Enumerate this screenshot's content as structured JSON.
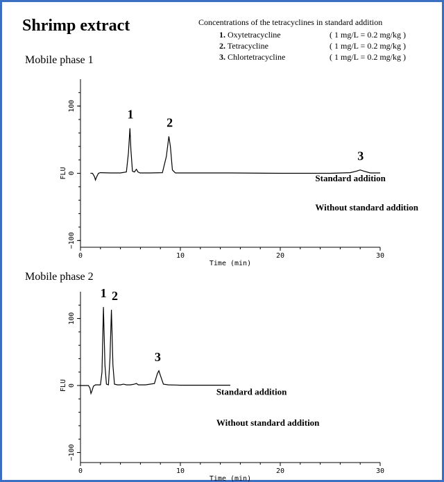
{
  "title": "Shrimp extract",
  "legend": {
    "heading": "Concentrations of the tetracyclines in standard addition",
    "items": [
      {
        "num": "1.",
        "name": "Oxytetracycline",
        "conc": "( 1 mg/L = 0.2 mg/kg )"
      },
      {
        "num": "2.",
        "name": "Tetracycline",
        "conc": "( 1 mg/L = 0.2 mg/kg )"
      },
      {
        "num": "3.",
        "name": "Chlortetracycline",
        "conc": "( 1 mg/L = 0.2 mg/kg )"
      }
    ]
  },
  "colors": {
    "frame": "#3a6fc4",
    "trace": "#000000"
  },
  "chart_data": [
    {
      "type": "line",
      "panel_label": "Mobile phase 1",
      "xlabel": "Time (min)",
      "ylabel": "FLU",
      "xlim": [
        0,
        30
      ],
      "ylim": [
        -110,
        140
      ],
      "xticks": [
        "0",
        "10",
        "20",
        "30"
      ],
      "yticks": [
        "100",
        "0",
        "−100"
      ],
      "ytick_values": [
        100,
        0,
        -100
      ],
      "grid": false,
      "series": [
        {
          "name": "Standard addition",
          "x": [
            1.0,
            1.2,
            1.4,
            1.5,
            1.6,
            1.8,
            2.0,
            3.0,
            4.0,
            4.6,
            4.8,
            4.95,
            5.05,
            5.2,
            5.4,
            5.6,
            5.75,
            5.95,
            6.3,
            7.0,
            8.2,
            8.6,
            8.85,
            9.0,
            9.2,
            9.5,
            10.0,
            15.0,
            20.0,
            25.0,
            27.0,
            27.6,
            28.0,
            28.4,
            29.0,
            30.0
          ],
          "y": [
            0,
            0,
            -5,
            -10,
            -6,
            0,
            1,
            0.5,
            0.5,
            2,
            30,
            67,
            35,
            3,
            2,
            6,
            2,
            0.5,
            0.5,
            0.5,
            1,
            25,
            55,
            40,
            5,
            0.5,
            0.5,
            0.5,
            0,
            0,
            1,
            3,
            5,
            3,
            0.5,
            0.5
          ]
        }
      ],
      "annotations": [
        {
          "text": "1",
          "x": 4.9,
          "y": 67
        },
        {
          "text": "2",
          "x": 8.9,
          "y": 55
        },
        {
          "text": "3",
          "x": 28.0,
          "y": 5
        },
        {
          "text": "Standard addition",
          "x": 23.5,
          "y": -12
        },
        {
          "text": "Without standard addition",
          "x": 23.5,
          "y": -55
        }
      ]
    },
    {
      "type": "line",
      "panel_label": "Mobile phase 2",
      "xlabel": "Time (min)",
      "ylabel": "FLU",
      "xlim": [
        0,
        30
      ],
      "ylim": [
        -115,
        140
      ],
      "xticks": [
        "0",
        "10",
        "20",
        "30"
      ],
      "yticks": [
        "100",
        "0",
        "−100"
      ],
      "ytick_values": [
        100,
        0,
        -100
      ],
      "grid": false,
      "series": [
        {
          "name": "Standard addition",
          "x": [
            0.0,
            0.8,
            0.95,
            1.05,
            1.15,
            1.3,
            1.5,
            2.0,
            2.15,
            2.3,
            2.45,
            2.6,
            2.8,
            2.95,
            3.1,
            3.25,
            3.4,
            3.7,
            4.0,
            4.3,
            4.6,
            5.0,
            5.4,
            5.6,
            5.8,
            6.5,
            7.4,
            7.7,
            7.85,
            8.0,
            8.3,
            8.8,
            10.0,
            12.0,
            15.0
          ],
          "y": [
            0,
            0,
            -4,
            -12,
            -8,
            -1,
            1,
            1,
            20,
            117,
            30,
            2,
            1,
            40,
            113,
            30,
            2,
            1,
            1,
            2,
            1,
            1,
            2,
            3,
            1,
            1,
            3,
            18,
            22,
            15,
            2,
            1,
            0.5,
            0.5,
            0.5
          ]
        }
      ],
      "annotations": [
        {
          "text": "1",
          "x": 2.2,
          "y": 117
        },
        {
          "text": "2",
          "x": 3.4,
          "y": 113
        },
        {
          "text": "3",
          "x": 7.7,
          "y": 22
        },
        {
          "text": "Standard addition",
          "x": 13.6,
          "y": -14
        },
        {
          "text": "Without standard addition",
          "x": 13.6,
          "y": -60
        }
      ]
    }
  ]
}
